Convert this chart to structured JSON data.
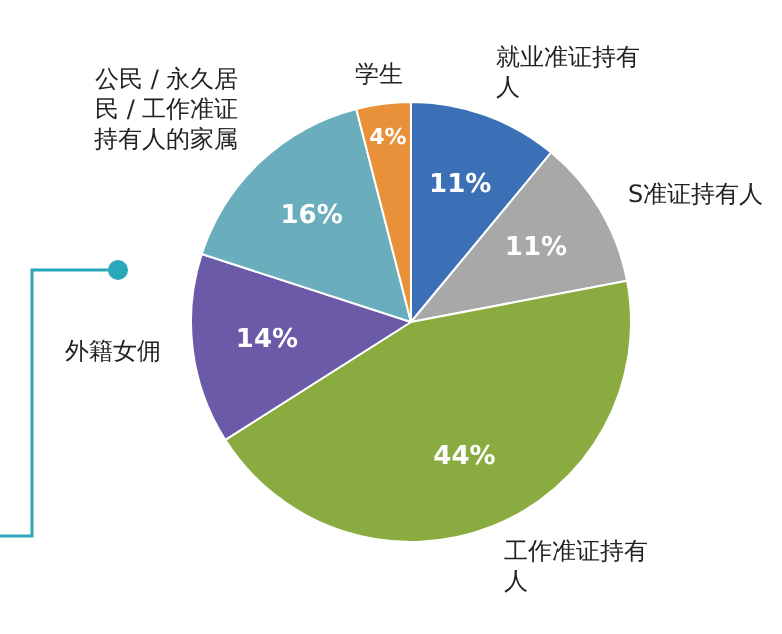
{
  "chart_data": {
    "type": "pie",
    "categories": [
      "就业准证持有人",
      "S准证持有人",
      "工作准证持有人",
      "外籍女佣",
      "公民 / 永久居民 / 工作准证持有人的家属",
      "学生"
    ],
    "values": [
      11,
      11,
      44,
      14,
      16,
      4
    ],
    "colors": [
      "#3b6fb6",
      "#a8a8a8",
      "#8aab3f",
      "#6b5aa8",
      "#6aaebd",
      "#e8913a"
    ],
    "value_labels": [
      "11%",
      "11%",
      "44%",
      "14%",
      "16%",
      "4%"
    ],
    "legend": false
  }
}
